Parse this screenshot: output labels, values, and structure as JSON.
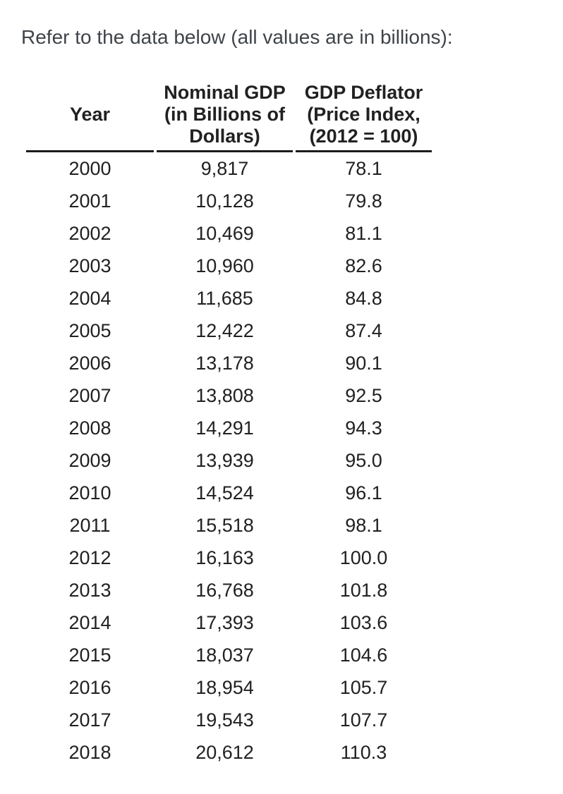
{
  "page": {
    "intro_text": "Refer to the data below (all values are in billions):"
  },
  "colors": {
    "text": "#212121",
    "intro_text": "#3f4449",
    "header_rule": "#1c1c1c",
    "background": "#ffffff"
  },
  "table": {
    "columns": [
      {
        "key": "year",
        "label": "Year"
      },
      {
        "key": "nominal_gdp",
        "label": "Nominal GDP\n(in Billions of\nDollars)"
      },
      {
        "key": "gdp_deflator",
        "label": "GDP Deflator\n(Price Index,\n(2012 = 100)"
      }
    ],
    "rows": [
      {
        "year": "2000",
        "nominal_gdp": "9,817",
        "gdp_deflator": "78.1"
      },
      {
        "year": "2001",
        "nominal_gdp": "10,128",
        "gdp_deflator": "79.8"
      },
      {
        "year": "2002",
        "nominal_gdp": "10,469",
        "gdp_deflator": "81.1"
      },
      {
        "year": "2003",
        "nominal_gdp": "10,960",
        "gdp_deflator": "82.6"
      },
      {
        "year": "2004",
        "nominal_gdp": "11,685",
        "gdp_deflator": "84.8"
      },
      {
        "year": "2005",
        "nominal_gdp": "12,422",
        "gdp_deflator": "87.4"
      },
      {
        "year": "2006",
        "nominal_gdp": "13,178",
        "gdp_deflator": "90.1"
      },
      {
        "year": "2007",
        "nominal_gdp": "13,808",
        "gdp_deflator": "92.5"
      },
      {
        "year": "2008",
        "nominal_gdp": "14,291",
        "gdp_deflator": "94.3"
      },
      {
        "year": "2009",
        "nominal_gdp": "13,939",
        "gdp_deflator": "95.0"
      },
      {
        "year": "2010",
        "nominal_gdp": "14,524",
        "gdp_deflator": "96.1"
      },
      {
        "year": "2011",
        "nominal_gdp": "15,518",
        "gdp_deflator": "98.1"
      },
      {
        "year": "2012",
        "nominal_gdp": "16,163",
        "gdp_deflator": "100.0"
      },
      {
        "year": "2013",
        "nominal_gdp": "16,768",
        "gdp_deflator": "101.8"
      },
      {
        "year": "2014",
        "nominal_gdp": "17,393",
        "gdp_deflator": "103.6"
      },
      {
        "year": "2015",
        "nominal_gdp": "18,037",
        "gdp_deflator": "104.6"
      },
      {
        "year": "2016",
        "nominal_gdp": "18,954",
        "gdp_deflator": "105.7"
      },
      {
        "year": "2017",
        "nominal_gdp": "19,543",
        "gdp_deflator": "107.7"
      },
      {
        "year": "2018",
        "nominal_gdp": "20,612",
        "gdp_deflator": "110.3"
      }
    ]
  }
}
